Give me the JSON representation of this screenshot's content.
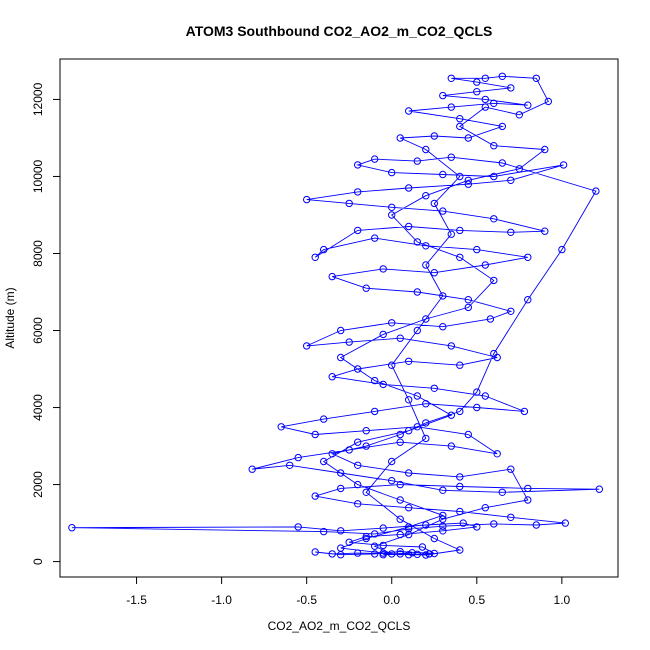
{
  "chart_data": {
    "type": "line",
    "title": "ATOM3 Southbound CO2_AO2_m_CO2_QCLS",
    "xlabel": "CO2_AO2_m_CO2_QCLS",
    "ylabel": "Altitude (m)",
    "xlim": [
      -1.95,
      1.33
    ],
    "ylim": [
      -400,
      13050
    ],
    "xticks": [
      -1.5,
      -1.0,
      -0.5,
      0.0,
      0.5,
      1.0
    ],
    "xtick_labels": [
      "-1.5",
      "-1.0",
      "-0.5",
      "0.0",
      "0.5",
      "1.0"
    ],
    "yticks": [
      0,
      2000,
      4000,
      6000,
      8000,
      10000,
      12000
    ],
    "ytick_labels": [
      "0",
      "2000",
      "4000",
      "6000",
      "8000",
      "10000",
      "12000"
    ],
    "grid": false,
    "legend": "none",
    "color": "#0000ff",
    "series": [
      {
        "points": [
          [
            0.05,
            200
          ],
          [
            0.12,
            230
          ],
          [
            -0.05,
            180
          ],
          [
            0.22,
            200
          ],
          [
            0.15,
            190
          ],
          [
            -0.2,
            220
          ],
          [
            -0.35,
            200
          ],
          [
            -0.45,
            250
          ],
          [
            -0.3,
            180
          ],
          [
            -0.1,
            200
          ],
          [
            0.05,
            260
          ],
          [
            0.25,
            210
          ],
          [
            0.18,
            380
          ],
          [
            -0.05,
            420
          ],
          [
            -0.25,
            500
          ],
          [
            -0.15,
            650
          ],
          [
            0.05,
            700
          ],
          [
            0.3,
            800
          ],
          [
            0.5,
            900
          ],
          [
            0.42,
            1000
          ],
          [
            0.2,
            950
          ],
          [
            -0.05,
            870
          ],
          [
            -0.3,
            800
          ],
          [
            -0.55,
            900
          ],
          [
            -1.88,
            880
          ],
          [
            -0.4,
            780
          ],
          [
            -0.1,
            720
          ],
          [
            0.1,
            850
          ],
          [
            0.3,
            920
          ],
          [
            0.6,
            980
          ],
          [
            0.85,
            950
          ],
          [
            1.02,
            1000
          ],
          [
            0.7,
            1150
          ],
          [
            0.4,
            1300
          ],
          [
            0.1,
            1400
          ],
          [
            -0.2,
            1500
          ],
          [
            -0.45,
            1700
          ],
          [
            -0.3,
            1900
          ],
          [
            0.05,
            2000
          ],
          [
            0.4,
            1950
          ],
          [
            0.8,
            1900
          ],
          [
            1.22,
            1880
          ],
          [
            0.65,
            1800
          ],
          [
            0.3,
            1850
          ],
          [
            0.0,
            2100
          ],
          [
            -0.3,
            2300
          ],
          [
            -0.6,
            2500
          ],
          [
            -0.82,
            2400
          ],
          [
            -0.55,
            2700
          ],
          [
            -0.25,
            2900
          ],
          [
            0.05,
            3100
          ],
          [
            0.35,
            3000
          ],
          [
            0.62,
            2800
          ],
          [
            0.45,
            3300
          ],
          [
            0.15,
            3500
          ],
          [
            -0.15,
            3400
          ],
          [
            -0.45,
            3300
          ],
          [
            -0.65,
            3500
          ],
          [
            -0.4,
            3700
          ],
          [
            -0.1,
            3900
          ],
          [
            0.2,
            4100
          ],
          [
            0.5,
            4000
          ],
          [
            0.78,
            3900
          ],
          [
            0.55,
            4300
          ],
          [
            0.25,
            4500
          ],
          [
            -0.05,
            4600
          ],
          [
            -0.35,
            4800
          ],
          [
            -0.2,
            5000
          ],
          [
            0.1,
            5200
          ],
          [
            0.4,
            5100
          ],
          [
            0.62,
            5300
          ],
          [
            0.35,
            5600
          ],
          [
            0.05,
            5800
          ],
          [
            -0.25,
            5700
          ],
          [
            -0.5,
            5600
          ],
          [
            -0.3,
            6000
          ],
          [
            0.0,
            6200
          ],
          [
            0.3,
            6100
          ],
          [
            0.58,
            6300
          ],
          [
            0.7,
            6500
          ],
          [
            0.45,
            6800
          ],
          [
            0.15,
            7000
          ],
          [
            -0.15,
            7100
          ],
          [
            -0.35,
            7400
          ],
          [
            -0.05,
            7600
          ],
          [
            0.25,
            7500
          ],
          [
            0.55,
            7700
          ],
          [
            0.8,
            7900
          ],
          [
            0.5,
            8100
          ],
          [
            0.2,
            8200
          ],
          [
            -0.1,
            8400
          ],
          [
            -0.4,
            8100
          ],
          [
            -0.45,
            7900
          ],
          [
            -0.2,
            8600
          ],
          [
            0.1,
            8700
          ],
          [
            0.4,
            8600
          ],
          [
            0.7,
            8550
          ],
          [
            0.9,
            8580
          ],
          [
            0.6,
            8900
          ],
          [
            0.3,
            9100
          ],
          [
            0.0,
            9200
          ],
          [
            -0.25,
            9300
          ],
          [
            -0.5,
            9400
          ],
          [
            -0.2,
            9600
          ],
          [
            0.1,
            9700
          ],
          [
            0.45,
            9800
          ],
          [
            0.7,
            9900
          ],
          [
            1.01,
            10300
          ],
          [
            0.6,
            10000
          ],
          [
            0.3,
            10050
          ],
          [
            0.0,
            10100
          ],
          [
            -0.2,
            10300
          ],
          [
            -0.1,
            10450
          ],
          [
            0.15,
            10400
          ],
          [
            0.35,
            10500
          ],
          [
            0.65,
            10350
          ],
          [
            1.2,
            9620
          ],
          [
            1.0,
            8100
          ],
          [
            0.8,
            6800
          ],
          [
            0.6,
            5400
          ],
          [
            0.5,
            4400
          ],
          [
            0.4,
            3900
          ],
          [
            0.2,
            3600
          ],
          [
            0.05,
            3300
          ],
          [
            -0.15,
            3000
          ],
          [
            -0.35,
            2800
          ],
          [
            -0.2,
            2500
          ],
          [
            0.1,
            2300
          ],
          [
            0.4,
            2200
          ],
          [
            0.7,
            2400
          ],
          [
            0.8,
            1600
          ],
          [
            0.55,
            1400
          ],
          [
            0.3,
            1100
          ],
          [
            0.1,
            700
          ],
          [
            -0.1,
            400
          ],
          [
            0.0,
            200
          ],
          [
            0.2,
            170
          ],
          [
            0.4,
            300
          ],
          [
            0.25,
            600
          ],
          [
            0.05,
            1100
          ],
          [
            -0.15,
            1800
          ],
          [
            0.0,
            2600
          ],
          [
            0.2,
            3200
          ],
          [
            0.1,
            4200
          ],
          [
            0.0,
            5100
          ],
          [
            0.15,
            6000
          ],
          [
            0.3,
            6900
          ],
          [
            0.2,
            7700
          ],
          [
            0.35,
            8500
          ],
          [
            0.25,
            9300
          ],
          [
            0.4,
            10000
          ],
          [
            0.2,
            10700
          ],
          [
            0.05,
            11000
          ],
          [
            0.25,
            11050
          ],
          [
            0.45,
            11000
          ],
          [
            0.65,
            11300
          ],
          [
            0.4,
            11500
          ],
          [
            0.1,
            11700
          ],
          [
            0.35,
            11800
          ],
          [
            0.6,
            11900
          ],
          [
            0.8,
            11850
          ],
          [
            0.55,
            12000
          ],
          [
            0.3,
            12100
          ],
          [
            0.5,
            12200
          ],
          [
            0.7,
            12300
          ],
          [
            0.5,
            12450
          ],
          [
            0.35,
            12550
          ],
          [
            0.55,
            12550
          ],
          [
            0.65,
            12600
          ],
          [
            0.85,
            12550
          ],
          [
            0.92,
            11950
          ],
          [
            0.75,
            11600
          ],
          [
            0.55,
            11800
          ],
          [
            0.4,
            11300
          ],
          [
            0.6,
            10800
          ],
          [
            0.9,
            10700
          ],
          [
            0.75,
            10200
          ],
          [
            0.45,
            9900
          ],
          [
            0.2,
            9500
          ],
          [
            0.0,
            9000
          ],
          [
            0.15,
            8300
          ],
          [
            0.4,
            7900
          ],
          [
            0.6,
            7300
          ],
          [
            0.45,
            6600
          ],
          [
            0.2,
            6300
          ],
          [
            -0.05,
            5900
          ],
          [
            -0.3,
            5300
          ],
          [
            -0.1,
            4700
          ],
          [
            0.15,
            4300
          ],
          [
            0.35,
            3800
          ],
          [
            0.1,
            3400
          ],
          [
            -0.2,
            3100
          ],
          [
            -0.4,
            2600
          ],
          [
            -0.2,
            2000
          ],
          [
            0.05,
            1600
          ],
          [
            0.3,
            1200
          ],
          [
            0.1,
            900
          ],
          [
            -0.15,
            600
          ],
          [
            -0.3,
            350
          ],
          [
            -0.05,
            220
          ],
          [
            0.1,
            180
          ],
          [
            0.22,
            200
          ]
        ]
      }
    ]
  }
}
